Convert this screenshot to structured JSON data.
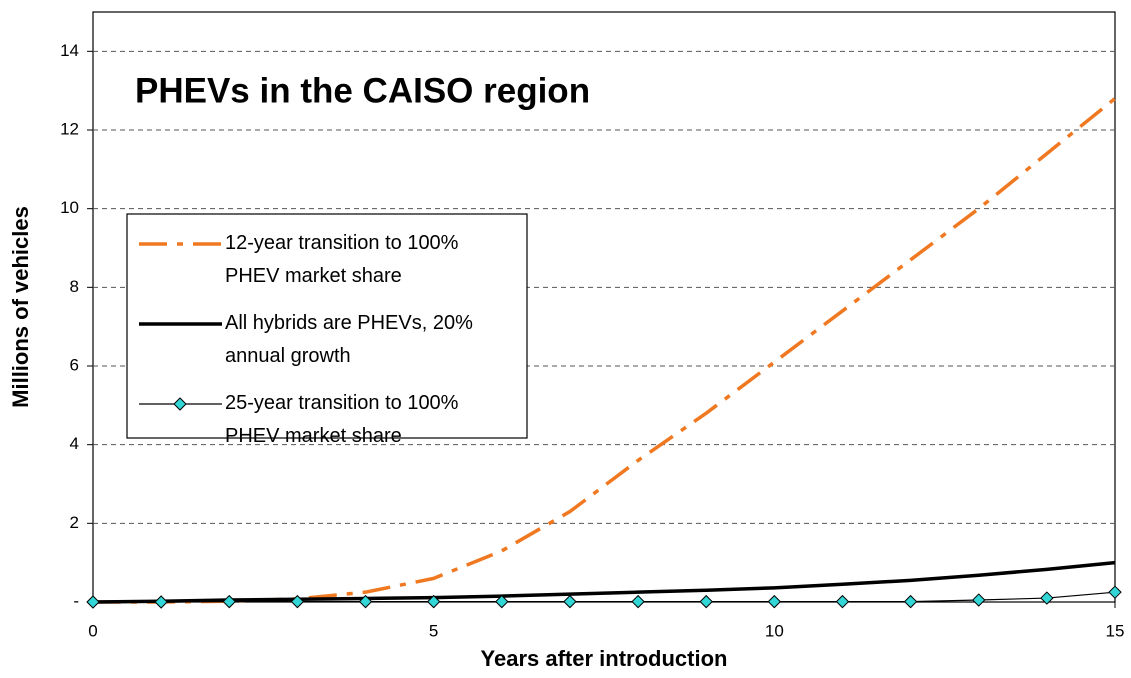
{
  "chart_data": {
    "type": "line",
    "title": "PHEVs in the CAISO region",
    "x_label": "Years after introduction",
    "y_label": "Millions of vehicles",
    "x": [
      0,
      1,
      2,
      3,
      4,
      5,
      6,
      7,
      8,
      9,
      10,
      11,
      12,
      13,
      14,
      15
    ],
    "series": [
      {
        "name": "12-year transition to 100% PHEV market share",
        "color": "#f07820",
        "style": "dash-dot",
        "values": [
          0,
          0,
          0.02,
          0.08,
          0.25,
          0.6,
          1.3,
          2.3,
          3.6,
          4.8,
          6.1,
          7.4,
          8.7,
          10.0,
          11.4,
          12.8
        ]
      },
      {
        "name": "All hybrids are PHEVs, 20% annual growth",
        "color": "#000000",
        "style": "thick",
        "values": [
          0,
          0.02,
          0.05,
          0.07,
          0.09,
          0.11,
          0.15,
          0.2,
          0.25,
          0.3,
          0.36,
          0.45,
          0.55,
          0.68,
          0.83,
          1.0
        ]
      },
      {
        "name": "25-year transition to 100% PHEV market share",
        "color": "#000000",
        "marker_color": "#33d6d6",
        "style": "marker",
        "values": [
          0,
          0,
          0.01,
          0.01,
          0.01,
          0.01,
          0.01,
          0.01,
          0.01,
          0.01,
          0.01,
          0.01,
          0.01,
          0.05,
          0.1,
          0.25
        ]
      }
    ],
    "xlim": [
      0,
      15
    ],
    "xticks": [
      0,
      5,
      10,
      15
    ],
    "ylim": [
      0,
      15
    ],
    "yticks": [
      {
        "value": 0,
        "label": "-"
      },
      2,
      4,
      6,
      8,
      10,
      12,
      14
    ],
    "grid": true,
    "legend": "center-left"
  }
}
